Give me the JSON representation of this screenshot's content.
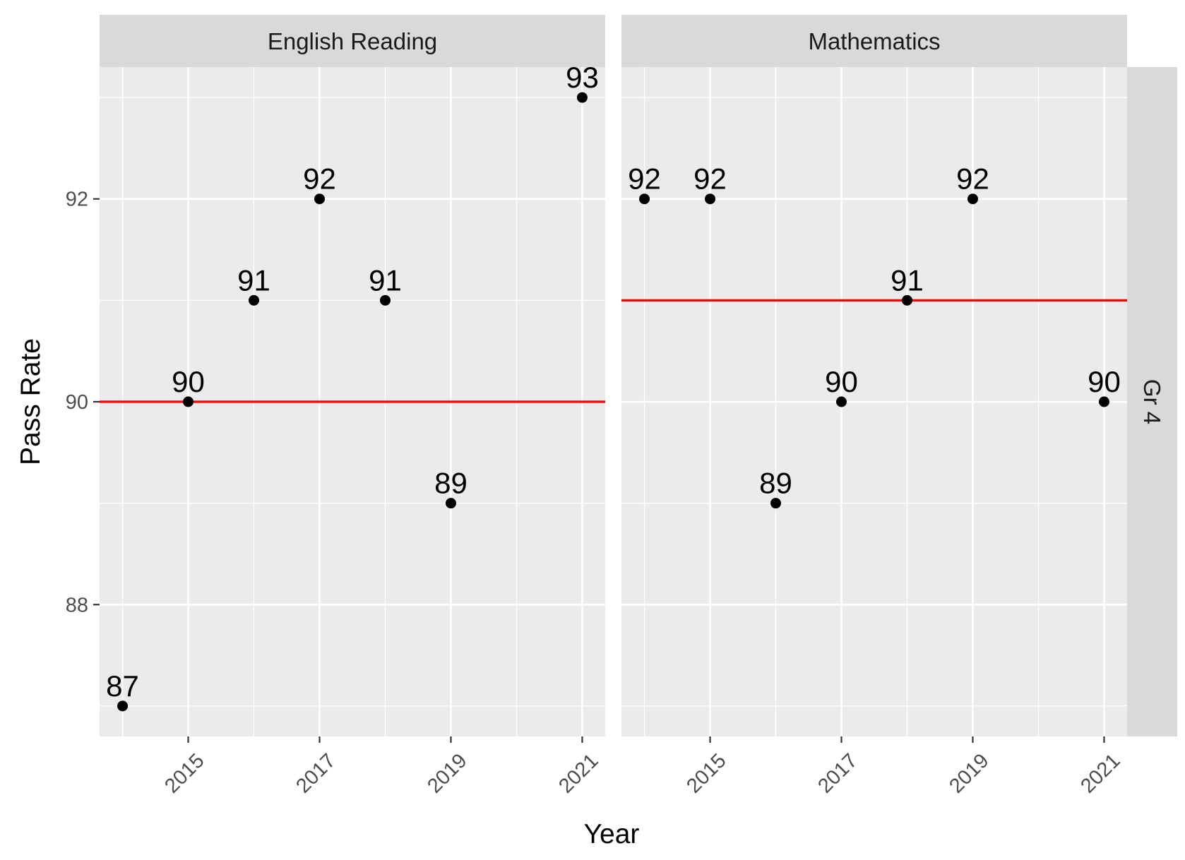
{
  "chart_data": {
    "type": "scatter",
    "xlabel": "Year",
    "ylabel": "Pass Rate",
    "xlim": [
      2013.65,
      2021.35
    ],
    "ylim": [
      86.7,
      93.3
    ],
    "x_ticks": [
      2015,
      2017,
      2019,
      2021
    ],
    "x_tick_labels": [
      "2015",
      "2017",
      "2019",
      "2021"
    ],
    "y_ticks": [
      88,
      90,
      92
    ],
    "y_tick_labels": [
      "88",
      "90",
      "92"
    ],
    "row_strip": "Gr 4",
    "grid": true,
    "panels": [
      {
        "strip": "English Reading",
        "reference_line": 90,
        "points": [
          {
            "x": 2014,
            "y": 87,
            "label": "87"
          },
          {
            "x": 2015,
            "y": 90,
            "label": "90"
          },
          {
            "x": 2016,
            "y": 91,
            "label": "91"
          },
          {
            "x": 2017,
            "y": 92,
            "label": "92"
          },
          {
            "x": 2018,
            "y": 91,
            "label": "91"
          },
          {
            "x": 2019,
            "y": 89,
            "label": "89"
          },
          {
            "x": 2021,
            "y": 93,
            "label": "93"
          }
        ]
      },
      {
        "strip": "Mathematics",
        "reference_line": 91,
        "points": [
          {
            "x": 2014,
            "y": 92,
            "label": "92"
          },
          {
            "x": 2015,
            "y": 92,
            "label": "92"
          },
          {
            "x": 2016,
            "y": 89,
            "label": "89"
          },
          {
            "x": 2017,
            "y": 90,
            "label": "90"
          },
          {
            "x": 2018,
            "y": 91,
            "label": "91"
          },
          {
            "x": 2019,
            "y": 92,
            "label": "92"
          },
          {
            "x": 2021,
            "y": 90,
            "label": "90"
          }
        ]
      }
    ],
    "colors": {
      "reference_line": "#ff0000",
      "point": "#000000",
      "panel_background": "#ebebeb",
      "strip_background": "#d9d9d9"
    }
  }
}
